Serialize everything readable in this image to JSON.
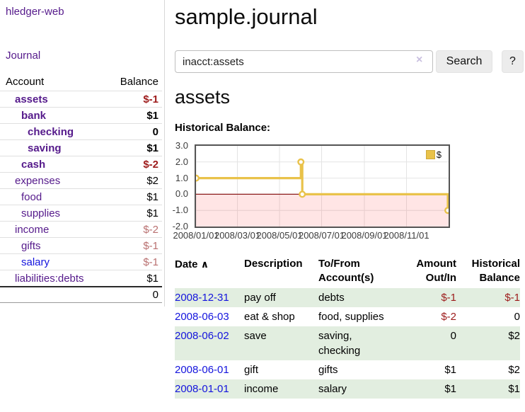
{
  "sidebar": {
    "brand": "hledger-web",
    "nav_journal": "Journal",
    "table": {
      "col_account": "Account",
      "col_balance": "Balance",
      "rows": [
        {
          "name": "assets",
          "balance": "$-1"
        },
        {
          "name": "bank",
          "balance": "$1"
        },
        {
          "name": "checking",
          "balance": "0"
        },
        {
          "name": "saving",
          "balance": "$1"
        },
        {
          "name": "cash",
          "balance": "$-2"
        },
        {
          "name": "expenses",
          "balance": "$2"
        },
        {
          "name": "food",
          "balance": "$1"
        },
        {
          "name": "supplies",
          "balance": "$1"
        },
        {
          "name": "income",
          "balance": "$-2"
        },
        {
          "name": "gifts",
          "balance": "$-1"
        },
        {
          "name": "salary",
          "balance": "$-1"
        },
        {
          "name": "liabilities:debts",
          "balance": "$1"
        }
      ],
      "total": "0"
    }
  },
  "header": {
    "title": "sample.journal",
    "search": {
      "value": "inacct:assets",
      "clear_icon": "×",
      "button_label": "Search",
      "help_label": "?"
    }
  },
  "account_page": {
    "heading": "assets",
    "chart_label": "Historical Balance:"
  },
  "chart_data": {
    "type": "line",
    "title": "Historical Balance",
    "step": true,
    "series": [
      {
        "name": "$",
        "x": [
          "2008/01/01",
          "2008/06/01",
          "2008/06/03",
          "2008/12/31"
        ],
        "y": [
          1,
          2,
          0,
          -1
        ]
      }
    ],
    "ylim": [
      -2,
      3
    ],
    "yticks": [
      "3.0",
      "2.0",
      "1.0",
      "0.0",
      "-1.0",
      "-2.0"
    ],
    "xticks": [
      "2008/01/01",
      "2008/03/01",
      "2008/05/01",
      "2008/07/01",
      "2008/09/01",
      "2008/11/01"
    ],
    "x_range": [
      "2008/01/01",
      "2009/01/01"
    ],
    "grid": true,
    "legend_position": "top-right",
    "colors": {
      "line": "#e9c24a",
      "marker_fill": "#ffffff",
      "grid": "#e4e4e4",
      "border": "#545454",
      "zero_line": "#8b1a1a",
      "negative_fill": "rgba(255,40,40,0.12)"
    }
  },
  "transactions": {
    "headers": {
      "date": "Date",
      "sort_icon": "∧",
      "description": "Description",
      "accounts": "To/From Account(s)",
      "amount": "Amount Out/In",
      "balance": "Historical Balance"
    },
    "rows": [
      {
        "date": "2008-12-31",
        "description": "pay off",
        "accounts": "debts",
        "amount": "$-1",
        "balance": "$-1"
      },
      {
        "date": "2008-06-03",
        "description": "eat & shop",
        "accounts": "food, supplies",
        "amount": "$-2",
        "balance": "0"
      },
      {
        "date": "2008-06-02",
        "description": "save",
        "accounts": "saving, checking",
        "amount": "0",
        "balance": "$2"
      },
      {
        "date": "2008-06-01",
        "description": "gift",
        "accounts": "gifts",
        "amount": "$1",
        "balance": "$2"
      },
      {
        "date": "2008-01-01",
        "description": "income",
        "accounts": "salary",
        "amount": "$1",
        "balance": "$1"
      }
    ]
  }
}
